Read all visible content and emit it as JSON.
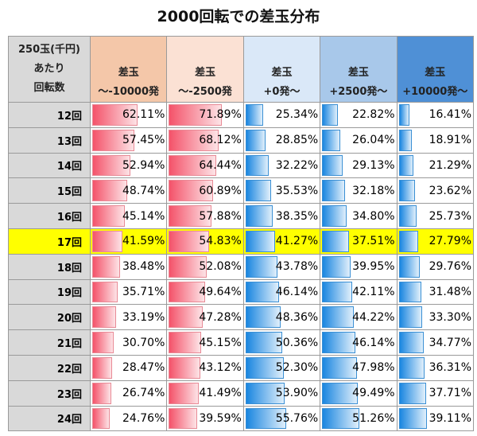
{
  "chart_data": {
    "type": "table",
    "title": "2000回転での差玉分布",
    "row_header": [
      "250玉(千円)",
      "あたり",
      "回転数"
    ],
    "columns": [
      {
        "line1": "差玉",
        "line2": "～-10000発",
        "color": "#f4c7a9"
      },
      {
        "line1": "差玉",
        "line2": "～-2500発",
        "color": "#fbe1d4"
      },
      {
        "line1": "差玉",
        "line2": "+0発～",
        "color": "#dae8f8"
      },
      {
        "line1": "差玉",
        "line2": "+2500発～",
        "color": "#a8c8ea"
      },
      {
        "line1": "差玉",
        "line2": "+10000発～",
        "color": "#4f90d6"
      }
    ],
    "highlight_row": "17回",
    "highlight_color": "#ffff00",
    "rows": [
      {
        "label": "12回",
        "values": [
          "62.11%",
          "71.89%",
          "25.34%",
          "22.82%",
          "16.41%"
        ]
      },
      {
        "label": "13回",
        "values": [
          "57.45%",
          "68.12%",
          "28.85%",
          "26.04%",
          "18.91%"
        ]
      },
      {
        "label": "14回",
        "values": [
          "52.94%",
          "64.44%",
          "32.22%",
          "29.13%",
          "21.29%"
        ]
      },
      {
        "label": "15回",
        "values": [
          "48.74%",
          "60.89%",
          "35.53%",
          "32.18%",
          "23.62%"
        ]
      },
      {
        "label": "16回",
        "values": [
          "45.14%",
          "57.88%",
          "38.35%",
          "34.80%",
          "25.73%"
        ]
      },
      {
        "label": "17回",
        "values": [
          "41.59%",
          "54.83%",
          "41.27%",
          "37.51%",
          "27.79%"
        ]
      },
      {
        "label": "18回",
        "values": [
          "38.48%",
          "52.08%",
          "43.78%",
          "39.95%",
          "29.76%"
        ]
      },
      {
        "label": "19回",
        "values": [
          "35.71%",
          "49.64%",
          "46.14%",
          "42.11%",
          "31.48%"
        ]
      },
      {
        "label": "20回",
        "values": [
          "33.19%",
          "47.28%",
          "48.36%",
          "44.22%",
          "33.30%"
        ]
      },
      {
        "label": "21回",
        "values": [
          "30.70%",
          "45.15%",
          "50.36%",
          "46.14%",
          "34.77%"
        ]
      },
      {
        "label": "22回",
        "values": [
          "28.47%",
          "43.12%",
          "52.30%",
          "47.98%",
          "36.31%"
        ]
      },
      {
        "label": "23回",
        "values": [
          "26.74%",
          "41.49%",
          "53.90%",
          "49.49%",
          "37.71%"
        ]
      },
      {
        "label": "24回",
        "values": [
          "24.76%",
          "39.59%",
          "55.76%",
          "51.26%",
          "39.11%"
        ]
      }
    ]
  }
}
